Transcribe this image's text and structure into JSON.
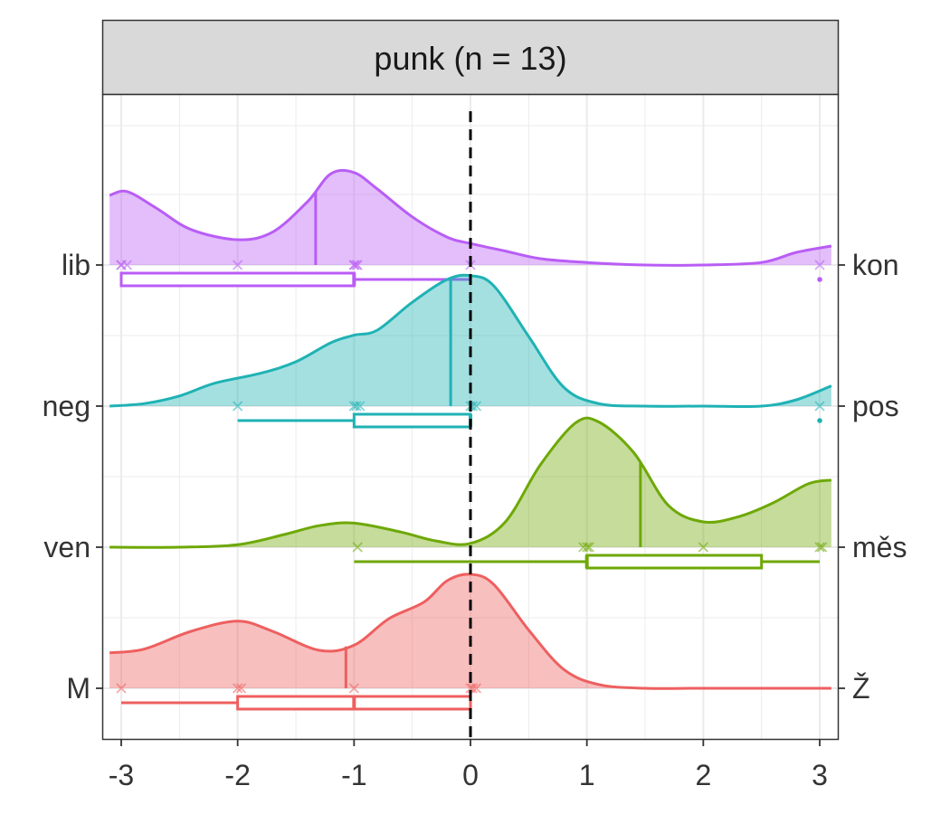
{
  "chart_data": {
    "type": "ridgeline",
    "facet_title": "punk (n = 13)",
    "x_ticks": [
      -3,
      -2,
      -1,
      0,
      1,
      2,
      3
    ],
    "xlim": [
      -3.1,
      3.1
    ],
    "reference_line_x": 0,
    "grid": true,
    "rows": [
      {
        "left_label": "lib",
        "right_label": "kon",
        "color": "#B95DF5",
        "points": [
          -3,
          -3,
          -2.95,
          -2,
          -1,
          -1,
          -0.98,
          -0.97,
          0,
          3
        ],
        "mean": -1.33,
        "density": [
          [
            -3.1,
            0.55
          ],
          [
            -2.95,
            0.58
          ],
          [
            -2.7,
            0.45
          ],
          [
            -2.4,
            0.28
          ],
          [
            -2,
            0.2
          ],
          [
            -1.7,
            0.26
          ],
          [
            -1.4,
            0.5
          ],
          [
            -1.2,
            0.72
          ],
          [
            -1,
            0.73
          ],
          [
            -0.8,
            0.6
          ],
          [
            -0.5,
            0.38
          ],
          [
            -0.2,
            0.22
          ],
          [
            0,
            0.17
          ],
          [
            0.3,
            0.11
          ],
          [
            0.6,
            0.05
          ],
          [
            1,
            0.02
          ],
          [
            1.5,
            0.0
          ],
          [
            2,
            0.0
          ],
          [
            2.5,
            0.02
          ],
          [
            2.8,
            0.1
          ],
          [
            3.1,
            0.15
          ]
        ],
        "box": {
          "min": -3,
          "q1": -3,
          "median": -1,
          "q3": -1,
          "max": 0
        },
        "outliers": [
          3
        ]
      },
      {
        "left_label": "neg",
        "right_label": "pos",
        "color": "#1FB2B4",
        "points": [
          -2,
          -1,
          -0.98,
          -0.95,
          0,
          0.02,
          0.05,
          3
        ],
        "mean": -0.17,
        "density": [
          [
            -3.1,
            0.0
          ],
          [
            -2.8,
            0.02
          ],
          [
            -2.5,
            0.08
          ],
          [
            -2.2,
            0.18
          ],
          [
            -1.8,
            0.26
          ],
          [
            -1.5,
            0.35
          ],
          [
            -1.2,
            0.5
          ],
          [
            -1,
            0.56
          ],
          [
            -0.8,
            0.6
          ],
          [
            -0.5,
            0.82
          ],
          [
            -0.2,
            1.0
          ],
          [
            0,
            1.03
          ],
          [
            0.2,
            0.95
          ],
          [
            0.5,
            0.55
          ],
          [
            0.8,
            0.15
          ],
          [
            1.1,
            0.02
          ],
          [
            1.5,
            0.0
          ],
          [
            2,
            0.0
          ],
          [
            2.5,
            0.0
          ],
          [
            2.8,
            0.05
          ],
          [
            3.1,
            0.16
          ]
        ],
        "box": {
          "min": -2,
          "q1": -1,
          "median": 0,
          "q3": 0,
          "max": 0
        },
        "outliers": [
          3
        ]
      },
      {
        "left_label": "ven",
        "right_label": "měs",
        "color": "#6EA806",
        "points": [
          -0.97,
          0.97,
          1,
          1.02,
          2,
          3,
          3.02
        ],
        "mean": 1.46,
        "density": [
          [
            -3.1,
            0.0
          ],
          [
            -2.5,
            0.0
          ],
          [
            -2,
            0.02
          ],
          [
            -1.6,
            0.1
          ],
          [
            -1.3,
            0.17
          ],
          [
            -1,
            0.19
          ],
          [
            -0.6,
            0.12
          ],
          [
            -0.3,
            0.05
          ],
          [
            0,
            0.03
          ],
          [
            0.3,
            0.2
          ],
          [
            0.6,
            0.65
          ],
          [
            0.9,
            0.98
          ],
          [
            1.1,
            0.99
          ],
          [
            1.4,
            0.75
          ],
          [
            1.7,
            0.33
          ],
          [
            2,
            0.2
          ],
          [
            2.3,
            0.24
          ],
          [
            2.6,
            0.35
          ],
          [
            2.9,
            0.5
          ],
          [
            3.1,
            0.53
          ]
        ],
        "box": {
          "min": -1,
          "q1": 1,
          "median": 1,
          "q3": 2.5,
          "max": 3
        },
        "outliers": []
      },
      {
        "left_label": "M",
        "right_label": "Ž",
        "color": "#EE5F5F",
        "points": [
          -3,
          -2,
          -1.97,
          -1,
          0,
          0.02,
          0.05
        ],
        "mean": -1.07,
        "density": [
          [
            -3.1,
            0.28
          ],
          [
            -2.8,
            0.31
          ],
          [
            -2.4,
            0.45
          ],
          [
            -2,
            0.53
          ],
          [
            -1.7,
            0.45
          ],
          [
            -1.3,
            0.3
          ],
          [
            -1,
            0.34
          ],
          [
            -0.7,
            0.55
          ],
          [
            -0.4,
            0.68
          ],
          [
            -0.2,
            0.85
          ],
          [
            0,
            0.9
          ],
          [
            0.2,
            0.82
          ],
          [
            0.5,
            0.46
          ],
          [
            0.8,
            0.15
          ],
          [
            1.1,
            0.03
          ],
          [
            1.5,
            0.0
          ],
          [
            2,
            0.0
          ],
          [
            3.1,
            0.0
          ]
        ],
        "box": {
          "min": -3,
          "q1": -2,
          "median": -1,
          "q3": 0,
          "max": 0
        },
        "outliers": []
      }
    ]
  }
}
